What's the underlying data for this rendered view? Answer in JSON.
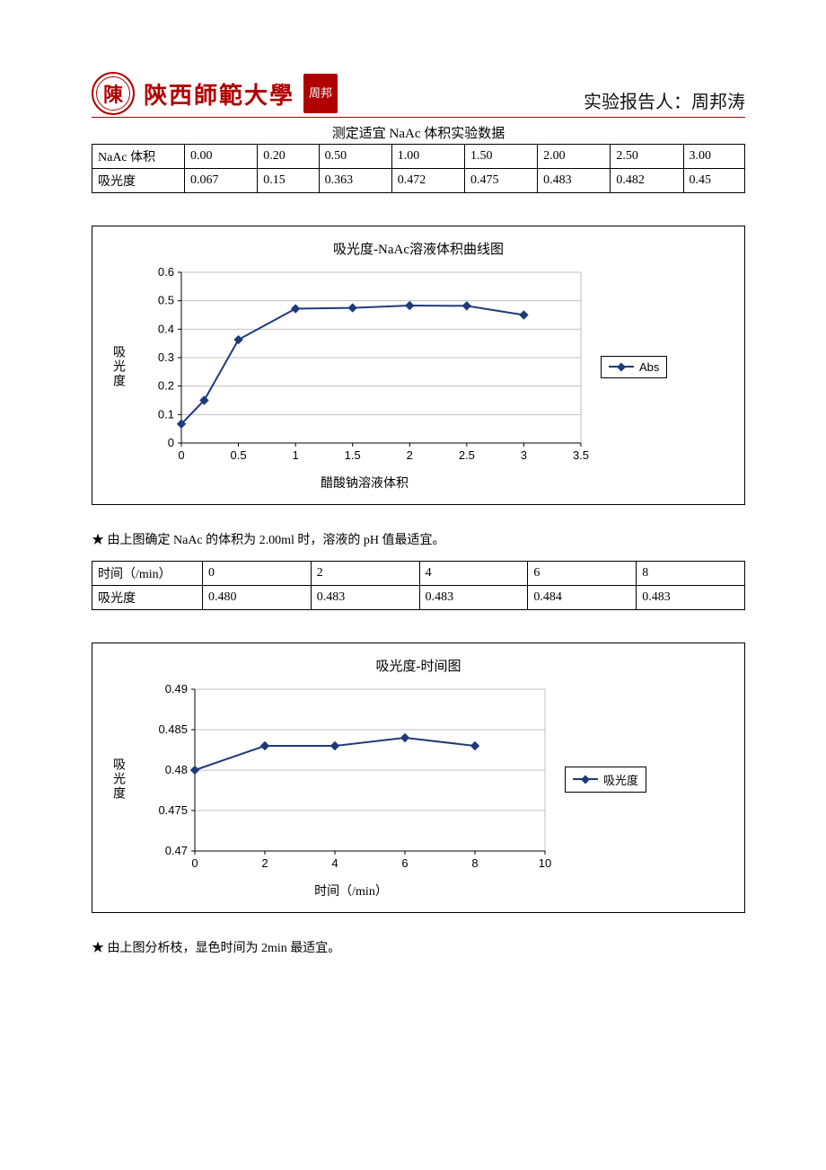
{
  "header": {
    "seal_char": "陳",
    "university": "陝西師範大學",
    "stamp_text": "周邦",
    "reporter_label": "实验报告人：",
    "reporter_name": "周邦涛"
  },
  "table1": {
    "title": "测定适宜 NaAc 体积实验数据",
    "row_labels": [
      "NaAc 体积",
      "吸光度"
    ],
    "cells": [
      [
        "0.00",
        "0.20",
        "0.50",
        "1.00",
        "1.50",
        "2.00",
        "2.50",
        "3.00"
      ],
      [
        "0.067",
        "0.15",
        "0.363",
        "0.472",
        "0.475",
        "0.483",
        "0.482",
        "0.45"
      ]
    ]
  },
  "chart1": {
    "type": "line",
    "title": "吸光度-NaAc溶液体积曲线图",
    "ylabel": "吸光度",
    "xlabel": "醋酸钠溶液体积",
    "legend": "Abs",
    "x_values": [
      0,
      0.2,
      0.5,
      1.0,
      1.5,
      2.0,
      2.5,
      3.0
    ],
    "y_values": [
      0.067,
      0.15,
      0.363,
      0.472,
      0.475,
      0.483,
      0.482,
      0.45
    ],
    "xlim": [
      0,
      3.5
    ],
    "x_ticks": [
      0,
      0.5,
      1,
      1.5,
      2,
      2.5,
      3,
      3.5
    ],
    "ylim": [
      0,
      0.6
    ],
    "y_ticks": [
      0,
      0.1,
      0.2,
      0.3,
      0.4,
      0.5,
      0.6
    ],
    "line_color": "#1f3a7a",
    "marker_color": "#1f3a7a",
    "grid_color": "#c0c0c0",
    "line_width": 2,
    "tick_fontsize": 13
  },
  "note1": "★ 由上图确定 NaAc 的体积为 2.00ml 时，溶液的 pH 值最适宜。",
  "table2": {
    "row_labels": [
      "时间（/min）",
      "吸光度"
    ],
    "cells": [
      [
        "0",
        "2",
        "4",
        "6",
        "8"
      ],
      [
        "0.480",
        "0.483",
        "0.483",
        "0.484",
        "0.483"
      ]
    ]
  },
  "chart2": {
    "type": "line",
    "title": "吸光度-时间图",
    "ylabel": "吸光度",
    "xlabel": "时间（/min）",
    "legend": "吸光度",
    "x_values": [
      0,
      2,
      4,
      6,
      8
    ],
    "y_values": [
      0.48,
      0.483,
      0.483,
      0.484,
      0.483
    ],
    "xlim": [
      0,
      10
    ],
    "x_ticks": [
      0,
      2,
      4,
      6,
      8,
      10
    ],
    "ylim": [
      0.47,
      0.49
    ],
    "y_ticks": [
      0.47,
      0.475,
      0.48,
      0.485,
      0.49
    ],
    "y_tick_labels": [
      "0.47",
      "0.475",
      "0.48",
      "0.485",
      "0.49"
    ],
    "line_color": "#1f3a7a",
    "marker_color": "#1f3a7a",
    "grid_color": "#c0c0c0",
    "line_width": 2,
    "tick_fontsize": 13
  },
  "note2": "★ 由上图分析枝，显色时间为 2min 最适宜。"
}
